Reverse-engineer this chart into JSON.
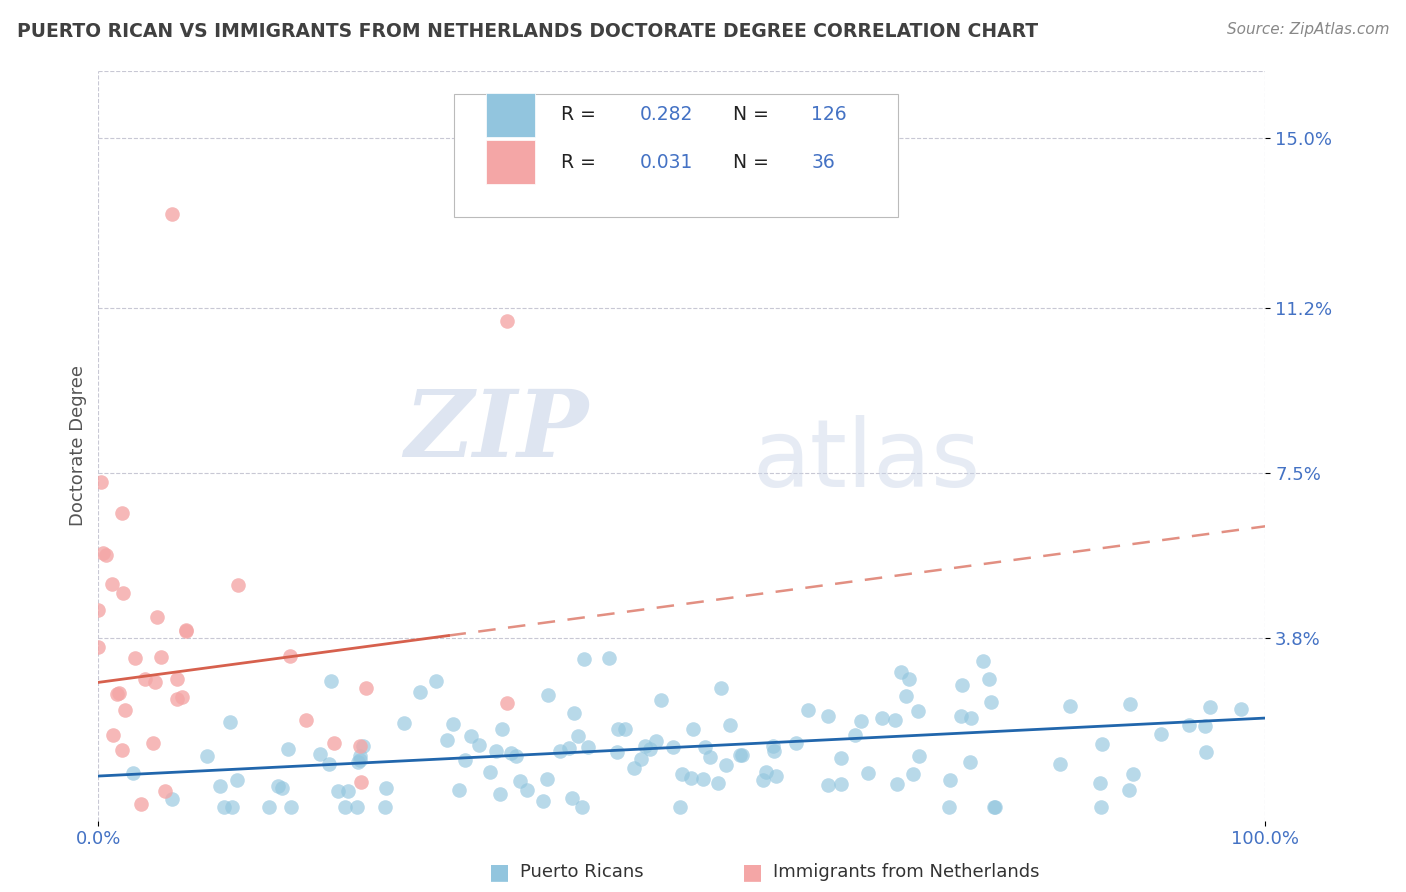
{
  "title": "PUERTO RICAN VS IMMIGRANTS FROM NETHERLANDS DOCTORATE DEGREE CORRELATION CHART",
  "source": "Source: ZipAtlas.com",
  "ylabel": "Doctorate Degree",
  "blue_color": "#92c5de",
  "pink_color": "#f4a6a6",
  "blue_line_color": "#2166ac",
  "pink_line_solid_color": "#d6604d",
  "pink_line_dash_color": "#d6604d",
  "axis_label_color": "#4472c4",
  "title_color": "#404040",
  "source_color": "#888888",
  "ytick_labels": [
    "3.8%",
    "7.5%",
    "11.2%",
    "15.0%"
  ],
  "ytick_values": [
    0.038,
    0.075,
    0.112,
    0.15
  ],
  "xlim": [
    0.0,
    1.0
  ],
  "ylim": [
    -0.003,
    0.165
  ],
  "blue_trend_start_y": 0.007,
  "blue_trend_end_y": 0.02,
  "pink_trend_start_y": 0.028,
  "pink_trend_end_y": 0.063,
  "background_color": "#ffffff",
  "grid_color": "#c8c8d4",
  "watermark_zip": "ZIP",
  "watermark_atlas": "atlas",
  "legend_R1": "0.282",
  "legend_N1": "126",
  "legend_R2": "0.031",
  "legend_N2": "36",
  "bottom_label1": "Puerto Ricans",
  "bottom_label2": "Immigrants from Netherlands"
}
